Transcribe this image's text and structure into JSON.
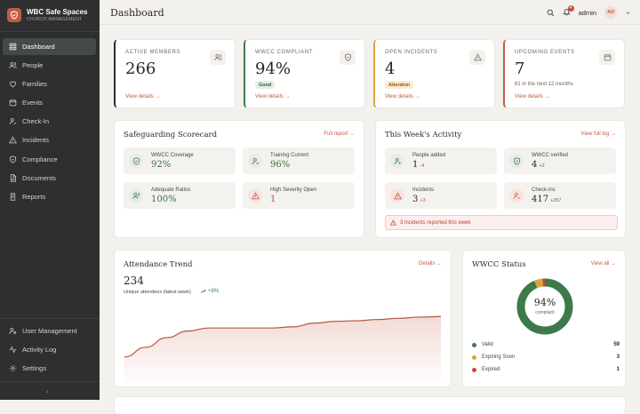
{
  "brand": {
    "name": "WBC Safe Spaces",
    "subtitle": "CHURCH MANAGEMENT"
  },
  "sidebar": {
    "items": [
      {
        "label": "Dashboard",
        "icon": "grid-icon",
        "active": true
      },
      {
        "label": "People",
        "icon": "users-icon"
      },
      {
        "label": "Families",
        "icon": "heart-icon"
      },
      {
        "label": "Events",
        "icon": "calendar-icon"
      },
      {
        "label": "Check-In",
        "icon": "checkin-icon"
      },
      {
        "label": "Incidents",
        "icon": "warning-icon"
      },
      {
        "label": "Compliance",
        "icon": "shield-icon"
      },
      {
        "label": "Documents",
        "icon": "document-icon"
      },
      {
        "label": "Reports",
        "icon": "report-icon"
      }
    ],
    "bottom_items": [
      {
        "label": "User Management",
        "icon": "user-cog-icon"
      },
      {
        "label": "Activity Log",
        "icon": "activity-icon"
      },
      {
        "label": "Settings",
        "icon": "gear-icon"
      }
    ],
    "collapse_label": "‹"
  },
  "header": {
    "title": "Dashboard",
    "notifications": "4",
    "user": "admin",
    "avatar": "AD"
  },
  "stats": [
    {
      "label": "ACTIVE MEMBERS",
      "value": "266",
      "link": "View details →",
      "accent": "#2d2f30",
      "icon": "users-icon"
    },
    {
      "label": "WWCC COMPLIANT",
      "value": "94%",
      "badge": "Good",
      "link": "View details →",
      "accent": "#3d7a4a",
      "icon": "shield-icon"
    },
    {
      "label": "OPEN INCIDENTS",
      "value": "4",
      "badge": "Attention",
      "link": "View details →",
      "accent": "#e0a23a",
      "icon": "warning-icon"
    },
    {
      "label": "UPCOMING EVENTS",
      "value": "7",
      "sub": "81 in the next 12 months",
      "link": "View details →",
      "accent": "#c45a43",
      "icon": "calendar-icon"
    }
  ],
  "scorecard": {
    "title": "Safeguarding Scorecard",
    "link": "Full report →",
    "tiles": [
      {
        "label": "WWCC Coverage",
        "value": "92%"
      },
      {
        "label": "Training Current",
        "value": "96%"
      },
      {
        "label": "Adequate Ratios",
        "value": "100%"
      },
      {
        "label": "High Severity Open",
        "value": "1"
      }
    ]
  },
  "activity": {
    "title": "This Week's Activity",
    "link": "View full log →",
    "tiles": [
      {
        "label": "People added",
        "value": "1",
        "delta": "-4"
      },
      {
        "label": "WWCC verified",
        "value": "4",
        "delta": "+2"
      },
      {
        "label": "Incidents",
        "value": "3",
        "delta": "+3"
      },
      {
        "label": "Check-ins",
        "value": "417",
        "delta": "+357"
      }
    ],
    "alert": "3 incidents reported this week"
  },
  "attendance": {
    "title": "Attendance Trend",
    "link": "Details →",
    "value": "234",
    "caption": "Unique attendees (latest week)",
    "change": "+8%"
  },
  "chart_data": {
    "type": "area",
    "trend": [
      0.12,
      0.28,
      0.44,
      0.55,
      0.6,
      0.6,
      0.6,
      0.6,
      0.62,
      0.68,
      0.71,
      0.72,
      0.74,
      0.76,
      0.78,
      0.79
    ],
    "color": "#b5573f"
  },
  "wwcc": {
    "title": "WWCC Status",
    "link": "View all →",
    "center_value": "94%",
    "center_label": "compliant",
    "legend": [
      {
        "label": "Valid",
        "count": "59",
        "color": "#3d7a4a"
      },
      {
        "label": "Expiring Soon",
        "count": "3",
        "color": "#e0a23a"
      },
      {
        "label": "Expired",
        "count": "1",
        "color": "#c74a3b"
      }
    ]
  }
}
